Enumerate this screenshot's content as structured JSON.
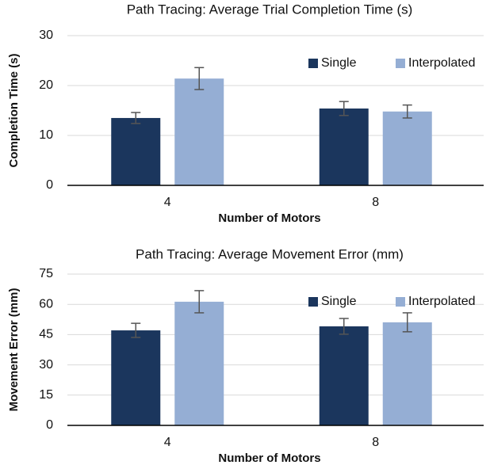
{
  "chart_data": [
    {
      "type": "bar",
      "title": "Path Tracing: Average Trial Completion Time (s)",
      "y_label": "Completion Time (s)",
      "x_label": "Number of Motors",
      "categories": [
        "4",
        "8"
      ],
      "series": [
        {
          "name": "Single",
          "color": "#1b365d",
          "values": [
            13.5,
            15.4
          ],
          "errors": [
            1.1,
            1.4
          ]
        },
        {
          "name": "Interpolated",
          "color": "#95aed4",
          "values": [
            21.4,
            14.8
          ],
          "errors": [
            2.2,
            1.3
          ]
        }
      ],
      "ylim": [
        0,
        30
      ],
      "yticks": [
        0,
        10,
        20,
        30
      ],
      "grid": true,
      "legend": "top-right"
    },
    {
      "type": "bar",
      "title": "Path Tracing: Average Movement Error (mm)",
      "y_label": "Movement  Error (mm)",
      "x_label": "Number of Motors",
      "categories": [
        "4",
        "8"
      ],
      "series": [
        {
          "name": "Single",
          "color": "#1b365d",
          "values": [
            47.1,
            49.1
          ],
          "errors": [
            3.5,
            3.9
          ]
        },
        {
          "name": "Interpolated",
          "color": "#95aed4",
          "values": [
            61.3,
            51.1
          ],
          "errors": [
            5.5,
            4.7
          ]
        }
      ],
      "ylim": [
        0,
        75
      ],
      "yticks": [
        0,
        15,
        30,
        45,
        60,
        75
      ],
      "grid": true,
      "legend": "top-right"
    }
  ]
}
